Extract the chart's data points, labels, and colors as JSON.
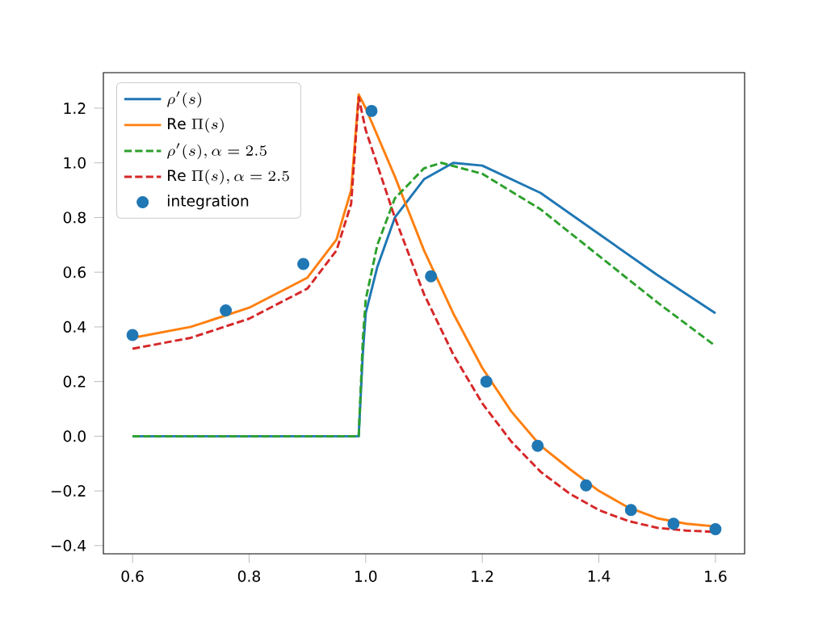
{
  "chart_data": {
    "type": "line",
    "xlim": [
      0.55,
      1.65
    ],
    "ylim": [
      -0.43,
      1.33
    ],
    "xticks": [
      {
        "value": 0.6,
        "label": "0.6"
      },
      {
        "value": 0.8,
        "label": "0.8"
      },
      {
        "value": 1.0,
        "label": "1.0"
      },
      {
        "value": 1.2,
        "label": "1.2"
      },
      {
        "value": 1.4,
        "label": "1.4"
      },
      {
        "value": 1.6,
        "label": "1.6"
      }
    ],
    "yticks": [
      {
        "value": -0.4,
        "label": "−0.4"
      },
      {
        "value": -0.2,
        "label": "−0.2"
      },
      {
        "value": 0.0,
        "label": "0.0"
      },
      {
        "value": 0.2,
        "label": "0.2"
      },
      {
        "value": 0.4,
        "label": "0.4"
      },
      {
        "value": 0.6,
        "label": "0.6"
      },
      {
        "value": 0.8,
        "label": "0.8"
      },
      {
        "value": 1.0,
        "label": "1.0"
      },
      {
        "value": 1.2,
        "label": "1.2"
      }
    ],
    "legend": "top left",
    "series": [
      {
        "name": "\\rho'(s)",
        "color": "#1f77b4",
        "line_style": "solid",
        "x": [
          0.6,
          0.988,
          0.995,
          1.0,
          1.02,
          1.05,
          1.1,
          1.15,
          1.2,
          1.3,
          1.4,
          1.5,
          1.6
        ],
        "values": [
          0,
          0,
          0.3,
          0.45,
          0.62,
          0.8,
          0.94,
          1.0,
          0.99,
          0.89,
          0.74,
          0.59,
          0.45
        ]
      },
      {
        "name": "\\mathrm{Re}\\ \\Pi(s)",
        "color": "#ff7f0e",
        "line_style": "solid",
        "x": [
          0.6,
          0.7,
          0.8,
          0.9,
          0.95,
          0.975,
          0.988,
          1.0,
          1.05,
          1.1,
          1.15,
          1.2,
          1.25,
          1.3,
          1.35,
          1.4,
          1.45,
          1.5,
          1.55,
          1.6
        ],
        "values": [
          0.36,
          0.4,
          0.47,
          0.58,
          0.72,
          0.9,
          1.25,
          1.2,
          0.95,
          0.68,
          0.45,
          0.25,
          0.09,
          -0.035,
          -0.12,
          -0.2,
          -0.26,
          -0.3,
          -0.32,
          -0.33
        ]
      },
      {
        "name": "\\rho'(s), \\alpha = 2.5",
        "color": "#2ca02c",
        "line_style": "dashed",
        "x": [
          0.6,
          0.988,
          0.995,
          1.0,
          1.02,
          1.05,
          1.1,
          1.13,
          1.2,
          1.3,
          1.4,
          1.5,
          1.6
        ],
        "values": [
          0,
          0,
          0.35,
          0.5,
          0.7,
          0.87,
          0.98,
          1.0,
          0.96,
          0.83,
          0.66,
          0.49,
          0.33
        ]
      },
      {
        "name": "\\mathrm{Re}\\ \\Pi(s), \\alpha = 2.5",
        "color": "#d62728",
        "line_style": "dashed",
        "x": [
          0.6,
          0.7,
          0.8,
          0.9,
          0.95,
          0.975,
          0.988,
          1.0,
          1.05,
          1.1,
          1.15,
          1.2,
          1.25,
          1.3,
          1.35,
          1.4,
          1.45,
          1.5,
          1.55,
          1.6
        ],
        "values": [
          0.32,
          0.36,
          0.43,
          0.54,
          0.68,
          0.85,
          1.24,
          1.12,
          0.8,
          0.52,
          0.3,
          0.12,
          -0.02,
          -0.13,
          -0.21,
          -0.27,
          -0.31,
          -0.335,
          -0.345,
          -0.35
        ]
      },
      {
        "name": "\\mathrm{integration}",
        "type": "scatter",
        "marker": "circle",
        "color": "#1f77b4",
        "x": [
          0.6,
          0.76,
          0.893,
          1.01,
          1.112,
          1.207,
          1.295,
          1.378,
          1.455,
          1.528,
          1.6
        ],
        "values": [
          0.37,
          0.46,
          0.63,
          1.19,
          0.585,
          0.2,
          -0.035,
          -0.18,
          -0.27,
          -0.32,
          -0.34
        ]
      }
    ]
  }
}
